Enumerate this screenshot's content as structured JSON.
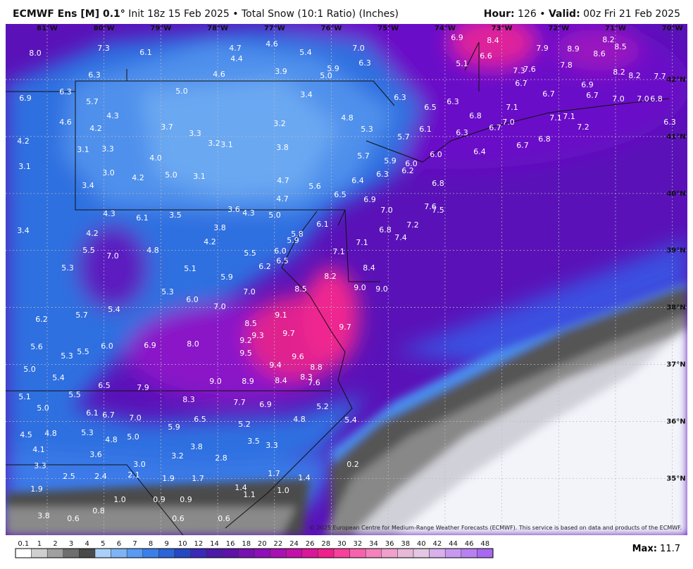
{
  "header": {
    "title": "ECMWF Ens [M] 0.1°",
    "subtitle": "Init 18z 15 Feb 2025 • Total Snow (10:1 Ratio) (Inches)",
    "hour_label": "Hour:",
    "hour_value": "126 •",
    "valid_label": "Valid:",
    "valid_value": "00z Fri 21 Feb 2025"
  },
  "map": {
    "longitudes": [
      "81°W",
      "80°W",
      "79°W",
      "78°W",
      "77°W",
      "76°W",
      "75°W",
      "74°W",
      "73°W",
      "72°W",
      "71°W",
      "70°W"
    ],
    "latitudes": [
      "42°N",
      "41°N",
      "40°N",
      "39°N",
      "38°N",
      "37°N",
      "36°N",
      "35°N"
    ],
    "labels": [
      "8.0",
      "7.3",
      "6.1",
      "4.7",
      "4.6",
      "5.4",
      "7.0",
      "6.9",
      "8.4",
      "7.9",
      "8.9",
      "8.2",
      "8.5",
      "8.6",
      "4.4",
      "6.3",
      "5.1",
      "6.6",
      "7.8",
      "7.3",
      "7.6",
      "8.2",
      "8.2",
      "7.7",
      "6.3",
      "4.6",
      "3.9",
      "5.0",
      "5.9",
      "6.7",
      "6.9",
      "6.9",
      "6.3",
      "5.7",
      "5.0",
      "3.4",
      "6.3",
      "6.3",
      "6.5",
      "6.7",
      "6.7",
      "7.0",
      "7.0",
      "6.8",
      "7.1",
      "4.3",
      "4.6",
      "4.2",
      "3.7",
      "3.3",
      "3.2",
      "4.8",
      "6.8",
      "7.1",
      "7.1",
      "7.0",
      "6.7",
      "7.2",
      "5.3",
      "6.1",
      "6.3",
      "6.3",
      "4.2",
      "3.2",
      "3.1",
      "5.7",
      "6.8",
      "6.7",
      "3.1",
      "3.3",
      "3.8",
      "6.4",
      "4.0",
      "5.7",
      "6.0",
      "5.9",
      "6.0",
      "3.1",
      "3.0",
      "5.0",
      "3.1",
      "4.2",
      "6.3",
      "6.2",
      "4.7",
      "6.4",
      "6.8",
      "3.4",
      "5.6",
      "6.5",
      "4.7",
      "6.9",
      "7.6",
      "7.5",
      "7.0",
      "4.3",
      "6.1",
      "3.5",
      "3.6",
      "4.3",
      "5.0",
      "6.1",
      "7.2",
      "3.4",
      "4.2",
      "3.8",
      "5.8",
      "5.9",
      "6.8",
      "7.4",
      "4.2",
      "7.1",
      "5.5",
      "4.8",
      "6.0",
      "5.5",
      "7.1",
      "7.0",
      "6.5",
      "5.3",
      "6.2",
      "5.1",
      "8.4",
      "8.2",
      "5.9",
      "9.0",
      "9.0",
      "8.5",
      "5.3",
      "7.0",
      "6.0",
      "7.0",
      "5.4",
      "5.7",
      "9.1",
      "6.2",
      "8.5",
      "9.7",
      "9.3",
      "9.7",
      "9.2",
      "5.6",
      "6.9",
      "6.0",
      "5.5",
      "8.0",
      "5.3",
      "9.5",
      "9.6",
      "9.4",
      "8.8",
      "5.0",
      "8.3",
      "5.4",
      "9.0",
      "8.9",
      "8.4",
      "7.6",
      "6.5",
      "7.9",
      "5.5",
      "5.1",
      "8.3",
      "7.7",
      "6.9",
      "5.2",
      "5.0",
      "6.1",
      "6.7",
      "7.0",
      "6.5",
      "4.8",
      "5.4",
      "5.2",
      "5.9",
      "4.5",
      "4.8",
      "5.3",
      "4.8",
      "5.0",
      "3.8",
      "3.5",
      "3.3",
      "4.1",
      "3.6",
      "3.2",
      "2.8",
      "3.0",
      "3.3",
      "0.2",
      "2.5",
      "2.4",
      "2.1",
      "1.9",
      "1.7",
      "1.7",
      "1.4",
      "1.9",
      "1.4",
      "1.1",
      "1.0",
      "1.0",
      "0.9",
      "0.9",
      "0.8",
      "3.8",
      "0.6",
      "0.6",
      "0.6"
    ]
  },
  "colorbar": {
    "labels": [
      "0.1",
      "1",
      "2",
      "3",
      "4",
      "5",
      "6",
      "7",
      "8",
      "9",
      "10",
      "12",
      "14",
      "16",
      "18",
      "20",
      "22",
      "24",
      "26",
      "28",
      "30",
      "32",
      "34",
      "36",
      "38",
      "40",
      "42",
      "44",
      "46",
      "48"
    ],
    "colors": [
      "#ffffff",
      "#cfcfcf",
      "#a0a0a0",
      "#6e6e6e",
      "#4a4a4a",
      "#a8d0fa",
      "#7eb4f6",
      "#5a9af2",
      "#3b80ea",
      "#2d65d8",
      "#2448c4",
      "#3a2ab8",
      "#4b1aa8",
      "#5e12a8",
      "#7612b0",
      "#8e10b8",
      "#a810b4",
      "#c410a8",
      "#dc1698",
      "#f0208c",
      "#f8409c",
      "#f862ac",
      "#f482bc",
      "#f0a0cc",
      "#e8b8d8",
      "#e2c8e2",
      "#d8b0ec",
      "#c898f0",
      "#b880f0",
      "#a868f0"
    ]
  },
  "footer": {
    "copyright": "© 2025 European Centre for Medium-Range Weather Forecasts (ECMWF). This service is based on data and products of the ECMWF.",
    "max_label": "Max:",
    "max_value": "11.7"
  }
}
